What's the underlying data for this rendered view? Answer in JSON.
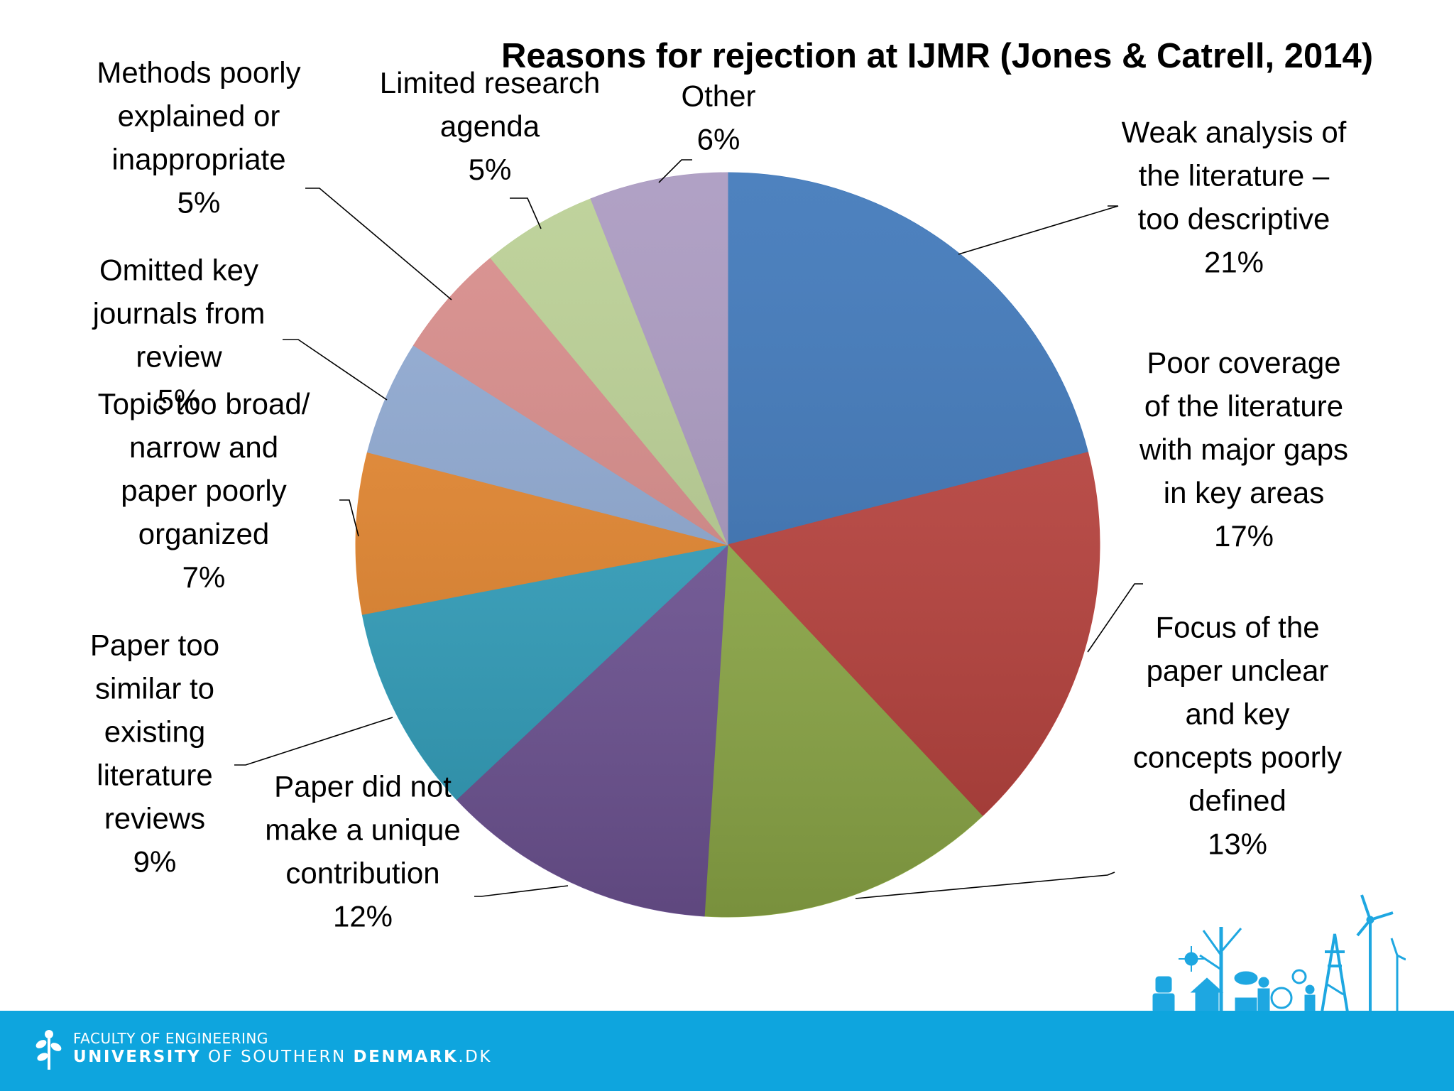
{
  "chart_data": {
    "type": "pie",
    "title": "Reasons for rejection at IJMR (Jones & Catrell, 2014)",
    "start_angle_deg": 0,
    "direction": "clockwise",
    "slices": [
      {
        "label_lines": [
          "Weak analysis of",
          "the literature –",
          "too descriptive",
          "21%"
        ],
        "value": 21,
        "color": "#3a74b8"
      },
      {
        "label_lines": [
          "Poor coverage",
          "of the literature",
          "with major gaps",
          "in key areas",
          "17%"
        ],
        "value": 17,
        "color": "#bd423d"
      },
      {
        "label_lines": [
          "Focus of the",
          "paper unclear",
          "and key",
          "concepts poorly",
          "defined",
          "13%"
        ],
        "value": 13,
        "color": "#93b04a"
      },
      {
        "label_lines": [
          "Paper did not",
          "make a unique",
          "contribution",
          "12%"
        ],
        "value": 12,
        "color": "#73579a"
      },
      {
        "label_lines": [
          "Paper too",
          "similar to",
          "existing",
          "literature",
          "reviews",
          "9%"
        ],
        "value": 9,
        "color": "#32a4c2"
      },
      {
        "label_lines": [
          "Topic too broad/",
          "narrow and",
          "paper poorly",
          "organized",
          "7%"
        ],
        "value": 7,
        "color": "#e8872d"
      },
      {
        "label_lines": [
          "Omitted key",
          "journals from",
          "review",
          "5%"
        ],
        "value": 5,
        "color": "#8ea9d3"
      },
      {
        "label_lines": [
          "Methods poorly",
          "explained or",
          "inappropriate",
          "5%"
        ],
        "value": 5,
        "color": "#d88a88"
      },
      {
        "label_lines": [
          "Limited research",
          "agenda",
          "5%"
        ],
        "value": 5,
        "color": "#b9cf92"
      },
      {
        "label_lines": [
          "Other",
          "6%"
        ],
        "value": 6,
        "color": "#a897bf"
      }
    ]
  },
  "footer": {
    "faculty": "FACULTY OF ENGINEERING",
    "university_bold": "UNIVERSITY",
    "university_light": "OF SOUTHERN",
    "denmark_bold": "DENMARK",
    "domain_suffix": ".DK",
    "background_color": "#0ea5de"
  }
}
